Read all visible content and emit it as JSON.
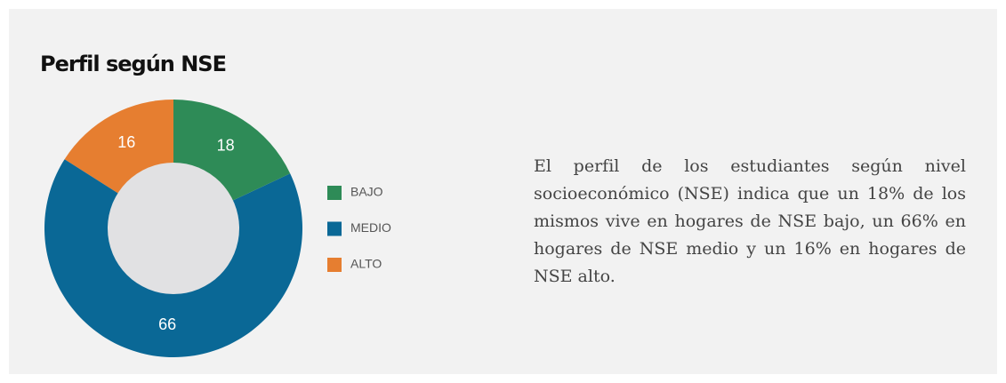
{
  "chart_data": {
    "type": "donut",
    "title": "Perfil según NSE",
    "categories": [
      "BAJO",
      "MEDIO",
      "ALTO"
    ],
    "values": [
      18,
      66,
      16
    ],
    "colors": [
      "#2e8b57",
      "#0a6896",
      "#e67e30"
    ],
    "legend": "right"
  },
  "description": "El perfil de los estudiantes según nivel socioeconómico (NSE) indica que un 18% de los mismos vive en hogares de NSE bajo, un 66% en hogares de NSE medio y un 16% en hogares de NSE alto."
}
